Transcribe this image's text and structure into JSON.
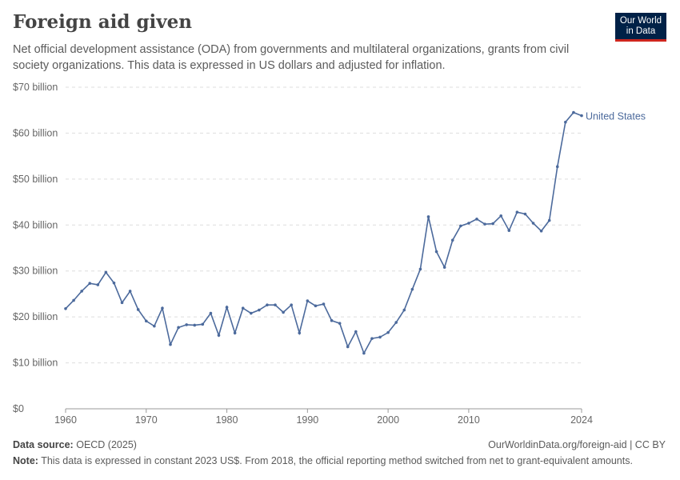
{
  "header": {
    "title": "Foreign aid given",
    "subtitle": "Net official development assistance (ODA) from governments and multilateral organizations, grants from civil society organizations. This data is expressed in US dollars and adjusted for inflation.",
    "logo": "Our World in Data"
  },
  "footer": {
    "source_label": "Data source:",
    "source": "OECD (2025)",
    "url": "OurWorldinData.org/foreign-aid | CC BY",
    "note_label": "Note:",
    "note": "This data is expressed in constant 2023 US$. From 2018, the official reporting method switched from net to grant-equivalent amounts."
  },
  "chart_data": {
    "type": "line",
    "title": "Foreign aid given",
    "xlim": [
      1960,
      2024
    ],
    "ylim": [
      0,
      70
    ],
    "yunit": "billion US$",
    "y_ticks": [
      0,
      10,
      20,
      30,
      40,
      50,
      60,
      70
    ],
    "y_tick_labels": [
      "$0",
      "$10 billion",
      "$20 billion",
      "$30 billion",
      "$40 billion",
      "$50 billion",
      "$60 billion",
      "$70 billion"
    ],
    "x_ticks": [
      1960,
      1970,
      1980,
      1990,
      2000,
      2010,
      2024
    ],
    "x_tick_labels": [
      "1960",
      "1970",
      "1980",
      "1990",
      "2000",
      "2010",
      "2024"
    ],
    "grid": "horizontal dashed",
    "series": [
      {
        "name": "United States",
        "color": "#4c6a9c",
        "x": [
          1960,
          1961,
          1962,
          1963,
          1964,
          1965,
          1966,
          1967,
          1968,
          1969,
          1970,
          1971,
          1972,
          1973,
          1974,
          1975,
          1976,
          1977,
          1978,
          1979,
          1980,
          1981,
          1982,
          1983,
          1984,
          1985,
          1986,
          1987,
          1988,
          1989,
          1990,
          1991,
          1992,
          1993,
          1994,
          1995,
          1996,
          1997,
          1998,
          1999,
          2000,
          2001,
          2002,
          2003,
          2004,
          2005,
          2006,
          2007,
          2008,
          2009,
          2010,
          2011,
          2012,
          2013,
          2014,
          2015,
          2016,
          2017,
          2018,
          2019,
          2020,
          2021,
          2022,
          2023,
          2024
        ],
        "values": [
          21.8,
          23.6,
          25.6,
          27.3,
          27.0,
          29.7,
          27.4,
          23.1,
          25.6,
          21.6,
          19.1,
          18.0,
          21.9,
          14.0,
          17.7,
          18.3,
          18.2,
          18.4,
          20.8,
          16.0,
          22.1,
          16.5,
          21.9,
          20.8,
          21.5,
          22.6,
          22.6,
          21.0,
          22.6,
          16.5,
          23.5,
          22.4,
          22.8,
          19.2,
          18.6,
          13.5,
          16.8,
          12.1,
          15.3,
          15.6,
          16.6,
          18.8,
          21.5,
          26.0,
          30.4,
          41.8,
          34.2,
          30.8,
          36.7,
          39.8,
          40.4,
          41.3,
          40.2,
          40.3,
          42.0,
          38.8,
          42.8,
          42.4,
          40.4,
          38.7,
          41.0,
          52.7,
          62.4,
          64.5,
          63.8
        ]
      }
    ]
  }
}
